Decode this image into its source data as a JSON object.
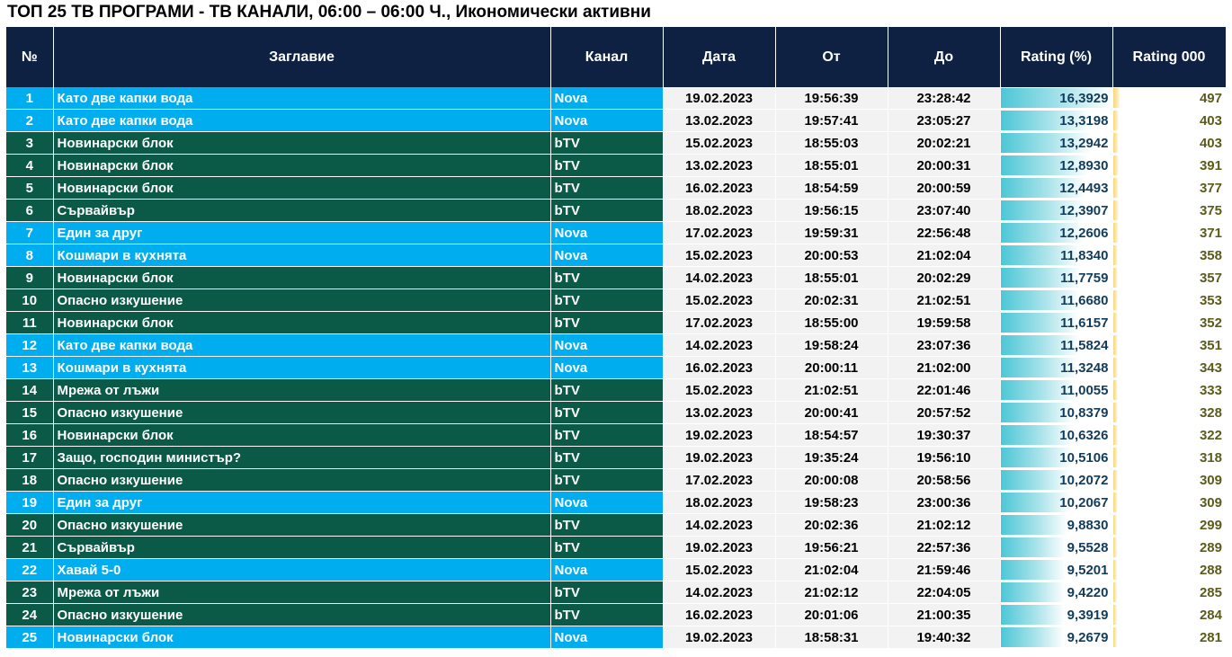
{
  "title": "ТОП 25 ТВ ПРОГРАМИ - ТВ КАНАЛИ, 06:00 – 06:00 Ч., Икономически активни",
  "headers": {
    "num": "№",
    "title": "Заглавие",
    "channel": "Канал",
    "date": "Дата",
    "from": "От",
    "to": "До",
    "rating": "Rating (%)",
    "rating000": "Rating 000"
  },
  "colors": {
    "header_bg": "#0e2142",
    "nova_row": "#00aeef",
    "btv_row": "#0b5a48",
    "rating_bar": "#4cc7d6",
    "rating000_bar": "#f7d77c"
  },
  "chart_data": {
    "type": "table",
    "title": "ТОП 25 ТВ ПРОГРАМИ - ТВ КАНАЛИ, 06:00 – 06:00 Ч., Икономически активни",
    "columns": [
      "№",
      "Заглавие",
      "Канал",
      "Дата",
      "От",
      "До",
      "Rating (%)",
      "Rating 000"
    ],
    "rows": [
      {
        "num": "1",
        "title": "Като две капки вода",
        "channel": "Nova",
        "date": "19.02.2023",
        "from": "19:56:39",
        "to": "23:28:42",
        "rating": "16,3929",
        "rating_value": 16.3929,
        "rating000": "497",
        "rating000_value": 497
      },
      {
        "num": "2",
        "title": "Като две капки вода",
        "channel": "Nova",
        "date": "13.02.2023",
        "from": "19:57:41",
        "to": "23:05:27",
        "rating": "13,3198",
        "rating_value": 13.3198,
        "rating000": "403",
        "rating000_value": 403
      },
      {
        "num": "3",
        "title": "Новинарски блок",
        "channel": "bTV",
        "date": "15.02.2023",
        "from": "18:55:03",
        "to": "20:02:21",
        "rating": "13,2942",
        "rating_value": 13.2942,
        "rating000": "403",
        "rating000_value": 403
      },
      {
        "num": "4",
        "title": "Новинарски блок",
        "channel": "bTV",
        "date": "13.02.2023",
        "from": "18:55:01",
        "to": "20:00:31",
        "rating": "12,8930",
        "rating_value": 12.893,
        "rating000": "391",
        "rating000_value": 391
      },
      {
        "num": "5",
        "title": "Новинарски блок",
        "channel": "bTV",
        "date": "16.02.2023",
        "from": "18:54:59",
        "to": "20:00:59",
        "rating": "12,4493",
        "rating_value": 12.4493,
        "rating000": "377",
        "rating000_value": 377
      },
      {
        "num": "6",
        "title": "Сървайвър",
        "channel": "bTV",
        "date": "18.02.2023",
        "from": "19:56:15",
        "to": "23:07:40",
        "rating": "12,3907",
        "rating_value": 12.3907,
        "rating000": "375",
        "rating000_value": 375
      },
      {
        "num": "7",
        "title": "Един за друг",
        "channel": "Nova",
        "date": "17.02.2023",
        "from": "19:59:31",
        "to": "22:56:48",
        "rating": "12,2606",
        "rating_value": 12.2606,
        "rating000": "371",
        "rating000_value": 371
      },
      {
        "num": "8",
        "title": "Кошмари в кухнята",
        "channel": "Nova",
        "date": "15.02.2023",
        "from": "20:00:53",
        "to": "21:02:04",
        "rating": "11,8340",
        "rating_value": 11.834,
        "rating000": "358",
        "rating000_value": 358
      },
      {
        "num": "9",
        "title": "Новинарски блок",
        "channel": "bTV",
        "date": "14.02.2023",
        "from": "18:55:01",
        "to": "20:02:29",
        "rating": "11,7759",
        "rating_value": 11.7759,
        "rating000": "357",
        "rating000_value": 357
      },
      {
        "num": "10",
        "title": "Опасно изкушение",
        "channel": "bTV",
        "date": "15.02.2023",
        "from": "20:02:31",
        "to": "21:02:51",
        "rating": "11,6680",
        "rating_value": 11.668,
        "rating000": "353",
        "rating000_value": 353
      },
      {
        "num": "11",
        "title": "Новинарски блок",
        "channel": "bTV",
        "date": "17.02.2023",
        "from": "18:55:00",
        "to": "19:59:58",
        "rating": "11,6157",
        "rating_value": 11.6157,
        "rating000": "352",
        "rating000_value": 352
      },
      {
        "num": "12",
        "title": "Като две капки вода",
        "channel": "Nova",
        "date": "14.02.2023",
        "from": "19:58:24",
        "to": "23:07:36",
        "rating": "11,5824",
        "rating_value": 11.5824,
        "rating000": "351",
        "rating000_value": 351
      },
      {
        "num": "13",
        "title": "Кошмари в кухнята",
        "channel": "Nova",
        "date": "16.02.2023",
        "from": "20:00:11",
        "to": "21:02:00",
        "rating": "11,3248",
        "rating_value": 11.3248,
        "rating000": "343",
        "rating000_value": 343
      },
      {
        "num": "14",
        "title": "Мрежа от лъжи",
        "channel": "bTV",
        "date": "15.02.2023",
        "from": "21:02:51",
        "to": "22:01:46",
        "rating": "11,0055",
        "rating_value": 11.0055,
        "rating000": "333",
        "rating000_value": 333
      },
      {
        "num": "15",
        "title": "Опасно изкушение",
        "channel": "bTV",
        "date": "13.02.2023",
        "from": "20:00:41",
        "to": "20:57:52",
        "rating": "10,8379",
        "rating_value": 10.8379,
        "rating000": "328",
        "rating000_value": 328
      },
      {
        "num": "16",
        "title": "Новинарски блок",
        "channel": "bTV",
        "date": "19.02.2023",
        "from": "18:54:57",
        "to": "19:30:37",
        "rating": "10,6326",
        "rating_value": 10.6326,
        "rating000": "322",
        "rating000_value": 322
      },
      {
        "num": "17",
        "title": "Защо, господин министър?",
        "channel": "bTV",
        "date": "19.02.2023",
        "from": "19:35:24",
        "to": "19:56:10",
        "rating": "10,5106",
        "rating_value": 10.5106,
        "rating000": "318",
        "rating000_value": 318
      },
      {
        "num": "18",
        "title": "Опасно изкушение",
        "channel": "bTV",
        "date": "17.02.2023",
        "from": "20:00:08",
        "to": "20:58:56",
        "rating": "10,2072",
        "rating_value": 10.2072,
        "rating000": "309",
        "rating000_value": 309
      },
      {
        "num": "19",
        "title": "Един за друг",
        "channel": "Nova",
        "date": "18.02.2023",
        "from": "19:58:23",
        "to": "23:00:36",
        "rating": "10,2067",
        "rating_value": 10.2067,
        "rating000": "309",
        "rating000_value": 309
      },
      {
        "num": "20",
        "title": "Опасно изкушение",
        "channel": "bTV",
        "date": "14.02.2023",
        "from": "20:02:36",
        "to": "21:02:12",
        "rating": "9,8830",
        "rating_value": 9.883,
        "rating000": "299",
        "rating000_value": 299
      },
      {
        "num": "21",
        "title": "Сървайвър",
        "channel": "bTV",
        "date": "19.02.2023",
        "from": "19:56:21",
        "to": "22:57:36",
        "rating": "9,5528",
        "rating_value": 9.5528,
        "rating000": "289",
        "rating000_value": 289
      },
      {
        "num": "22",
        "title": "Хавай 5-0",
        "channel": "Nova",
        "date": "15.02.2023",
        "from": "21:02:04",
        "to": "21:59:46",
        "rating": "9,5201",
        "rating_value": 9.5201,
        "rating000": "288",
        "rating000_value": 288
      },
      {
        "num": "23",
        "title": "Мрежа от лъжи",
        "channel": "bTV",
        "date": "14.02.2023",
        "from": "21:02:12",
        "to": "22:04:05",
        "rating": "9,4220",
        "rating_value": 9.422,
        "rating000": "285",
        "rating000_value": 285
      },
      {
        "num": "24",
        "title": "Опасно изкушение",
        "channel": "bTV",
        "date": "16.02.2023",
        "from": "20:01:06",
        "to": "21:00:35",
        "rating": "9,3919",
        "rating_value": 9.3919,
        "rating000": "284",
        "rating000_value": 284
      },
      {
        "num": "25",
        "title": "Новинарски блок",
        "channel": "Nova",
        "date": "19.02.2023",
        "from": "18:58:31",
        "to": "19:40:32",
        "rating": "9,2679",
        "rating_value": 9.2679,
        "rating000": "281",
        "rating000_value": 281
      }
    ]
  }
}
